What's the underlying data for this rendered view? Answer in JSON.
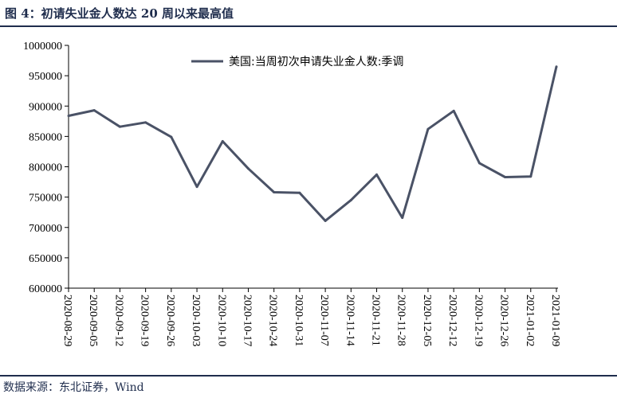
{
  "figure": {
    "title": "图  4：初请失业金人数达 20 周以来最高值",
    "source": "数据来源：东北证券，Wind"
  },
  "chart_data": {
    "type": "line",
    "title": "",
    "xlabel": "",
    "ylabel": "",
    "ylim": [
      600000,
      1000000
    ],
    "yticks": [
      600000,
      650000,
      700000,
      750000,
      800000,
      850000,
      900000,
      950000,
      1000000
    ],
    "ytick_labels": [
      "600000",
      "650000",
      "700000",
      "750000",
      "800000",
      "850000",
      "900000",
      "950000",
      "1000000"
    ],
    "legend_position": "top-center",
    "grid": false,
    "categories": [
      "2020-08-29",
      "2020-09-05",
      "2020-09-12",
      "2020-09-19",
      "2020-09-26",
      "2020-10-03",
      "2020-10-10",
      "2020-10-17",
      "2020-10-24",
      "2020-10-31",
      "2020-11-07",
      "2020-11-14",
      "2020-11-21",
      "2020-11-28",
      "2020-12-05",
      "2020-12-12",
      "2020-12-19",
      "2020-12-26",
      "2021-01-02",
      "2021-01-09"
    ],
    "series": [
      {
        "name": "美国:当周初次申请失业金人数:季调",
        "color": "#4a5266",
        "values": [
          884000,
          893000,
          866000,
          873000,
          849000,
          767000,
          842000,
          797000,
          758000,
          757000,
          711000,
          745000,
          787000,
          716000,
          862000,
          892000,
          806000,
          783000,
          784000,
          965000
        ]
      }
    ]
  }
}
